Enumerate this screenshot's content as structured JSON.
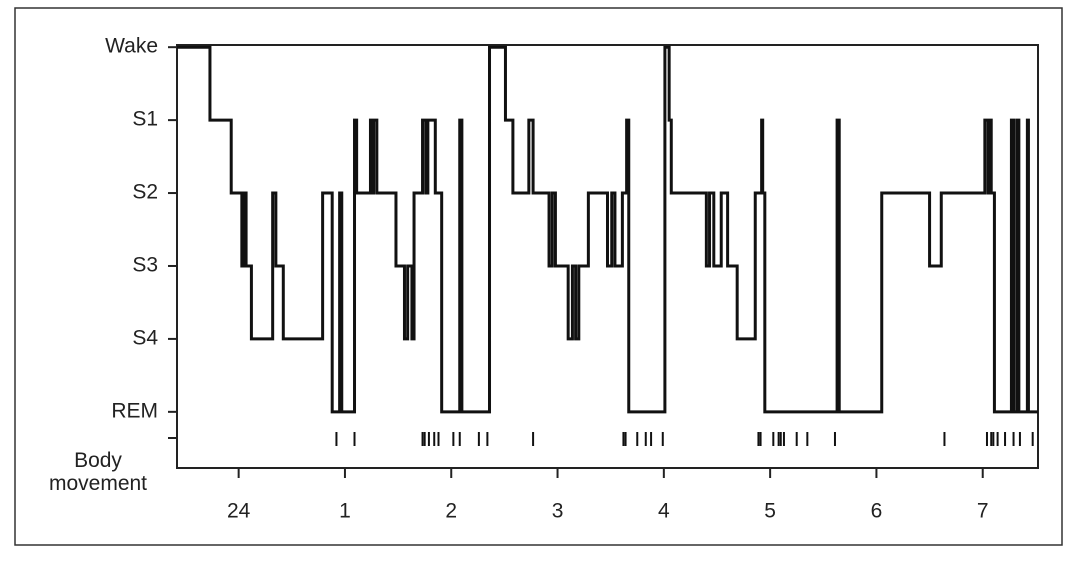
{
  "chart_data": {
    "type": "step",
    "color": "#111111",
    "x": [
      -0.58,
      -0.27,
      -0.07,
      0.03,
      0.05,
      0.07,
      0.12,
      0.32,
      0.35,
      0.42,
      0.79,
      0.88,
      0.95,
      0.97,
      1.09,
      1.11,
      1.24,
      1.25,
      1.27,
      1.3,
      1.48,
      1.56,
      1.59,
      1.63,
      1.65,
      1.73,
      1.76,
      1.78,
      1.85,
      1.91,
      2.08,
      2.1,
      2.36,
      2.51,
      2.58,
      2.73,
      2.77,
      2.92,
      2.95,
      2.98,
      3.1,
      3.14,
      3.17,
      3.2,
      3.29,
      3.47,
      3.51,
      3.54,
      3.61,
      3.65,
      3.67,
      4.01,
      4.05,
      4.07,
      4.4,
      4.43,
      4.47,
      4.54,
      4.6,
      4.69,
      4.86,
      4.92,
      4.93,
      4.95,
      5.63,
      5.65,
      6.05,
      6.5,
      6.61,
      7.02,
      7.05,
      7.07,
      7.08,
      7.11,
      7.27,
      7.29,
      7.32,
      7.34,
      7.42,
      7.43,
      7.52
    ],
    "values": [
      5,
      4,
      3,
      2,
      3,
      2,
      1,
      3,
      2,
      1,
      3,
      0,
      3,
      0,
      4,
      3,
      4,
      3,
      4,
      3,
      2,
      1,
      2,
      1,
      3,
      4,
      3,
      4,
      3,
      0,
      4,
      0,
      5,
      4,
      3,
      4,
      3,
      2,
      3,
      2,
      1,
      2,
      1,
      2,
      3,
      2,
      3,
      2,
      3,
      4,
      0,
      5,
      4,
      3,
      2,
      3,
      2,
      3,
      2,
      1,
      3,
      4,
      3,
      0,
      4,
      0,
      3,
      2,
      3,
      4,
      3,
      4,
      3,
      0,
      4,
      0,
      4,
      0,
      4,
      0,
      0
    ],
    "xlim": [
      -0.58,
      7.52
    ],
    "ylim": [
      -0.77,
      5.03
    ],
    "xticks": [
      {
        "value": 0,
        "label": "24"
      },
      1,
      2,
      3,
      4,
      5,
      6,
      7
    ],
    "yticks": [
      {
        "value": 5,
        "label": "Wake"
      },
      {
        "value": 4,
        "label": "S1"
      },
      {
        "value": 3,
        "label": "S2"
      },
      {
        "value": 2,
        "label": "S3"
      },
      {
        "value": 1,
        "label": "S4"
      },
      {
        "value": 0,
        "label": "REM"
      }
    ],
    "body_movement": {
      "label": "Body movement",
      "x": [
        0.92,
        1.09,
        1.73,
        1.75,
        1.79,
        1.84,
        1.88,
        2.02,
        2.08,
        2.26,
        2.34,
        2.77,
        3.62,
        3.64,
        3.75,
        3.83,
        3.88,
        3.99,
        4.89,
        4.91,
        5.03,
        5.08,
        5.1,
        5.13,
        5.25,
        5.35,
        5.61,
        6.64,
        7.04,
        7.08,
        7.1,
        7.14,
        7.21,
        7.29,
        7.35,
        7.47
      ]
    }
  }
}
